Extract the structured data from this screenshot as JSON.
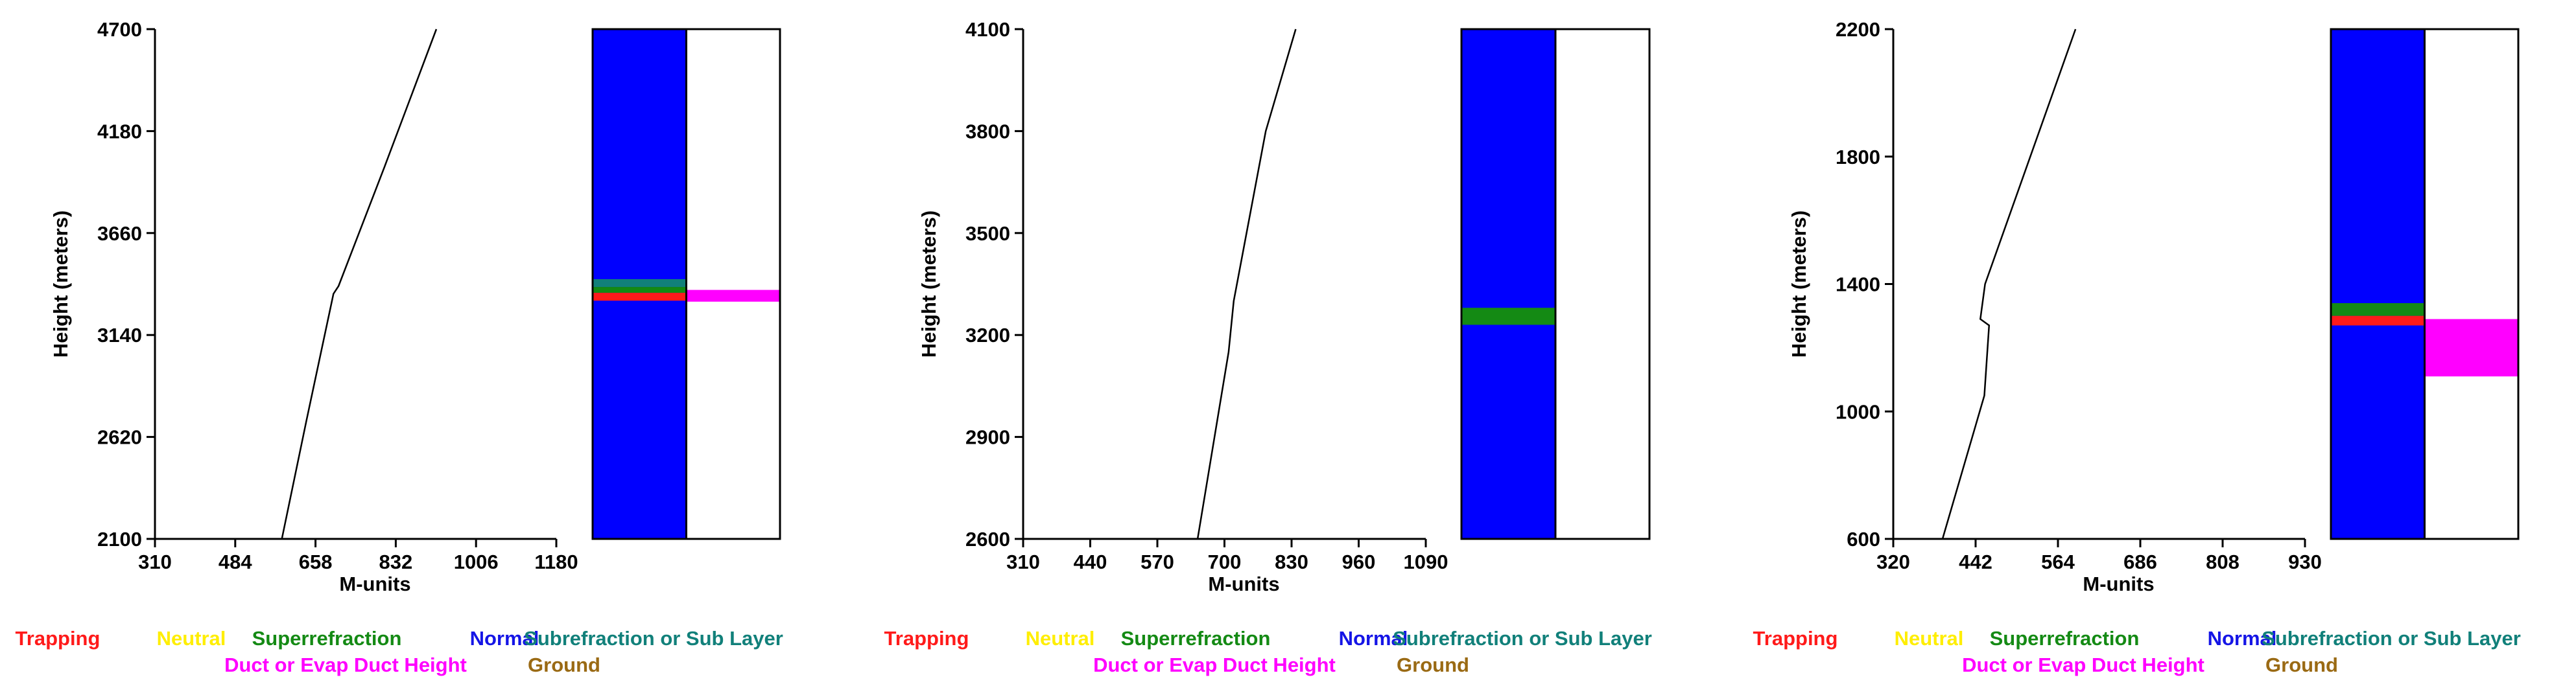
{
  "chart_data": [
    {
      "type": "line",
      "xlabel": "M-units",
      "ylabel": "Height (meters)",
      "xlim": [
        310,
        1180
      ],
      "ylim": [
        2100,
        4700
      ],
      "x_ticks": [
        310,
        484,
        658,
        832,
        1006,
        1180
      ],
      "y_ticks": [
        2100,
        2620,
        3140,
        3660,
        4180,
        4700
      ],
      "x_tick_labels": [
        "310",
        "484",
        "658",
        "832",
        "1006",
        "1180"
      ],
      "y_tick_labels": [
        "2100",
        "2620",
        "3140",
        "3660",
        "4180",
        "4700"
      ],
      "series": [
        {
          "values": [
            [
              585,
              2100
            ],
            [
              638,
              2700
            ],
            [
              697,
              3350
            ],
            [
              708,
              3390
            ],
            [
              808,
              4000
            ],
            [
              920,
              4700
            ]
          ]
        }
      ],
      "layer_bands": [
        {
          "type": "Subrefraction or Sub Layer",
          "bottom": 3385,
          "top": 3425
        },
        {
          "type": "Superrefraction",
          "bottom": 3355,
          "top": 3385
        },
        {
          "type": "Trapping",
          "bottom": 3315,
          "top": 3355
        }
      ],
      "duct_bands": [
        {
          "bottom": 3310,
          "top": 3370
        }
      ]
    },
    {
      "type": "line",
      "xlabel": "M-units",
      "ylabel": "Height (meters)",
      "xlim": [
        310,
        1090
      ],
      "ylim": [
        2600,
        4100
      ],
      "x_ticks": [
        310,
        440,
        570,
        700,
        830,
        960,
        1090
      ],
      "y_ticks": [
        2600,
        2900,
        3200,
        3500,
        3800,
        4100
      ],
      "x_tick_labels": [
        "310",
        "440",
        "570",
        "700",
        "830",
        "960",
        "1090"
      ],
      "y_tick_labels": [
        "2600",
        "2900",
        "3200",
        "3500",
        "3800",
        "4100"
      ],
      "series": [
        {
          "values": [
            [
              648,
              2600
            ],
            [
              708,
              3150
            ],
            [
              718,
              3300
            ],
            [
              780,
              3800
            ],
            [
              838,
              4100
            ]
          ]
        }
      ],
      "layer_bands": [
        {
          "type": "Superrefraction",
          "bottom": 3230,
          "top": 3280
        }
      ],
      "duct_bands": []
    },
    {
      "type": "line",
      "xlabel": "M-units",
      "ylabel": "Height (meters)",
      "xlim": [
        320,
        930
      ],
      "ylim": [
        600,
        2200
      ],
      "x_ticks": [
        320,
        442,
        564,
        686,
        808,
        930
      ],
      "y_ticks": [
        600,
        1000,
        1400,
        1800,
        2200
      ],
      "x_tick_labels": [
        "320",
        "442",
        "564",
        "686",
        "808",
        "930"
      ],
      "y_tick_labels": [
        "600",
        "1000",
        "1400",
        "1800",
        "2200"
      ],
      "series": [
        {
          "values": [
            [
              393,
              600
            ],
            [
              455,
              1050
            ],
            [
              462,
              1270
            ],
            [
              449,
              1290
            ],
            [
              456,
              1400
            ],
            [
              590,
              2200
            ]
          ]
        }
      ],
      "layer_bands": [
        {
          "type": "Superrefraction",
          "bottom": 1300,
          "top": 1340
        },
        {
          "type": "Trapping",
          "bottom": 1270,
          "top": 1300
        }
      ],
      "duct_bands": [
        {
          "bottom": 1110,
          "top": 1290
        }
      ]
    }
  ],
  "colors": {
    "Trapping": "#ff1a1a",
    "Neutral": "#ffee00",
    "Superrefraction": "#148a14",
    "Normal": "#1515e6",
    "Subrefraction or Sub Layer": "#11807a",
    "Duct or Evap Duct Height": "#ff00ff",
    "Ground": "#9a6a14",
    "background_column": "#0000ff",
    "line": "#000000"
  },
  "legend": {
    "row1": [
      "Trapping",
      "Neutral",
      "Superrefraction",
      "Normal",
      "Subrefraction or Sub Layer"
    ],
    "row2": [
      "Duct or Evap Duct Height",
      "Ground"
    ]
  }
}
